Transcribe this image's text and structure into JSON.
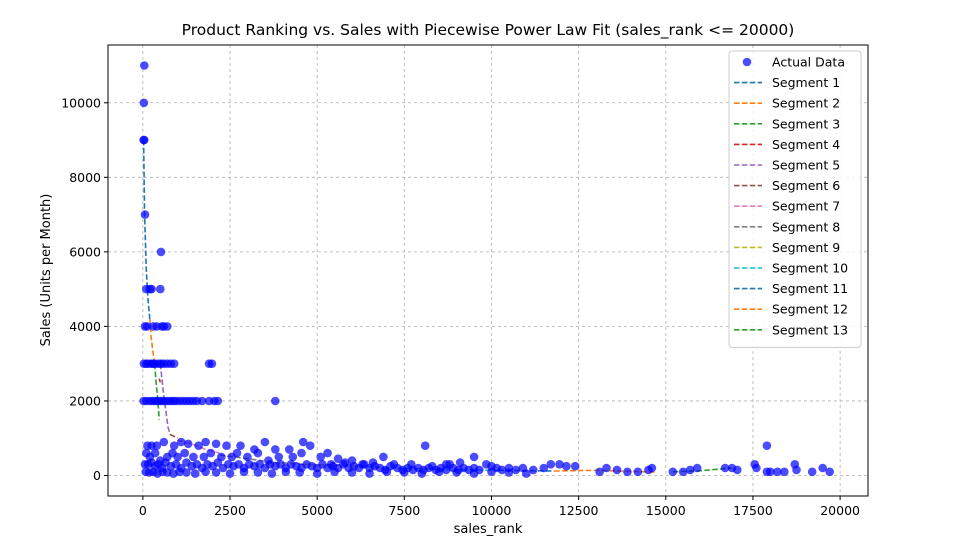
{
  "chart_data": {
    "type": "scatter",
    "title": "Product Ranking vs. Sales with Piecewise Power Law Fit (sales_rank <= 20000)",
    "xlabel": "sales_rank",
    "ylabel": "Sales (Units per Month)",
    "xlim": [
      -1000,
      20800
    ],
    "ylim": [
      -550,
      11550
    ],
    "xticks": [
      0,
      2500,
      5000,
      7500,
      10000,
      12500,
      15000,
      17500,
      20000
    ],
    "yticks": [
      0,
      2000,
      4000,
      6000,
      8000,
      10000
    ],
    "grid": true,
    "legend_position": "top-right",
    "scatter": {
      "name": "Actual Data",
      "color": "#0000ff",
      "points": [
        [
          40,
          11000
        ],
        [
          30,
          10000
        ],
        [
          20,
          9000
        ],
        [
          40,
          9000
        ],
        [
          60,
          7000
        ],
        [
          100,
          5000
        ],
        [
          200,
          5000
        ],
        [
          250,
          5000
        ],
        [
          500,
          5000
        ],
        [
          520,
          6000
        ],
        [
          60,
          4000
        ],
        [
          120,
          4000
        ],
        [
          300,
          4000
        ],
        [
          400,
          4000
        ],
        [
          550,
          4000
        ],
        [
          600,
          4000
        ],
        [
          700,
          4000
        ],
        [
          30,
          3000
        ],
        [
          100,
          3000
        ],
        [
          160,
          3000
        ],
        [
          250,
          3000
        ],
        [
          300,
          3000
        ],
        [
          360,
          3000
        ],
        [
          450,
          3000
        ],
        [
          520,
          3000
        ],
        [
          600,
          3000
        ],
        [
          700,
          3000
        ],
        [
          800,
          3000
        ],
        [
          900,
          3000
        ],
        [
          1900,
          3000
        ],
        [
          1980,
          3000
        ],
        [
          20,
          2000
        ],
        [
          100,
          2000
        ],
        [
          200,
          2000
        ],
        [
          280,
          2000
        ],
        [
          350,
          2000
        ],
        [
          420,
          2000
        ],
        [
          500,
          2000
        ],
        [
          560,
          2000
        ],
        [
          640,
          2000
        ],
        [
          720,
          2000
        ],
        [
          800,
          2000
        ],
        [
          880,
          2000
        ],
        [
          950,
          2000
        ],
        [
          1050,
          2000
        ],
        [
          1150,
          2000
        ],
        [
          1250,
          2000
        ],
        [
          1350,
          2000
        ],
        [
          1450,
          2000
        ],
        [
          1550,
          2000
        ],
        [
          1700,
          2000
        ],
        [
          1900,
          2000
        ],
        [
          2050,
          2000
        ],
        [
          2150,
          2000
        ],
        [
          3800,
          2000
        ],
        [
          130,
          800
        ],
        [
          250,
          800
        ],
        [
          400,
          800
        ],
        [
          600,
          900
        ],
        [
          900,
          800
        ],
        [
          1100,
          900
        ],
        [
          1300,
          850
        ],
        [
          1600,
          800
        ],
        [
          1800,
          900
        ],
        [
          2100,
          850
        ],
        [
          2400,
          800
        ],
        [
          2800,
          800
        ],
        [
          3200,
          700
        ],
        [
          3500,
          900
        ],
        [
          3800,
          700
        ],
        [
          4200,
          700
        ],
        [
          4600,
          900
        ],
        [
          4800,
          800
        ],
        [
          5300,
          600
        ],
        [
          5600,
          450
        ],
        [
          6000,
          400
        ],
        [
          6900,
          500
        ],
        [
          8100,
          800
        ],
        [
          8800,
          300
        ],
        [
          9500,
          500
        ],
        [
          17900,
          800
        ],
        [
          100,
          600
        ],
        [
          200,
          500
        ],
        [
          350,
          600
        ],
        [
          500,
          400
        ],
        [
          700,
          500
        ],
        [
          850,
          600
        ],
        [
          1000,
          500
        ],
        [
          1200,
          600
        ],
        [
          1450,
          500
        ],
        [
          1750,
          500
        ],
        [
          1950,
          600
        ],
        [
          2250,
          500
        ],
        [
          2550,
          500
        ],
        [
          2700,
          600
        ],
        [
          3000,
          500
        ],
        [
          3300,
          600
        ],
        [
          3600,
          400
        ],
        [
          3900,
          500
        ],
        [
          4300,
          500
        ],
        [
          4550,
          600
        ],
        [
          5100,
          500
        ],
        [
          5400,
          300
        ],
        [
          5800,
          350
        ],
        [
          6300,
          300
        ],
        [
          6600,
          350
        ],
        [
          7200,
          300
        ],
        [
          7700,
          300
        ],
        [
          8300,
          250
        ],
        [
          8700,
          300
        ],
        [
          9100,
          350
        ],
        [
          60,
          300
        ],
        [
          150,
          300
        ],
        [
          250,
          350
        ],
        [
          350,
          250
        ],
        [
          450,
          300
        ],
        [
          550,
          200
        ],
        [
          650,
          350
        ],
        [
          800,
          250
        ],
        [
          950,
          300
        ],
        [
          1100,
          200
        ],
        [
          1250,
          350
        ],
        [
          1400,
          250
        ],
        [
          1550,
          300
        ],
        [
          1700,
          200
        ],
        [
          1850,
          300
        ],
        [
          2000,
          250
        ],
        [
          2150,
          350
        ],
        [
          2300,
          200
        ],
        [
          2450,
          300
        ],
        [
          2600,
          250
        ],
        [
          2750,
          300
        ],
        [
          2900,
          200
        ],
        [
          3050,
          300
        ],
        [
          3200,
          250
        ],
        [
          3350,
          300
        ],
        [
          3500,
          200
        ],
        [
          3650,
          300
        ],
        [
          3800,
          250
        ],
        [
          3950,
          300
        ],
        [
          4100,
          200
        ],
        [
          4250,
          300
        ],
        [
          4400,
          250
        ],
        [
          4550,
          200
        ],
        [
          4700,
          300
        ],
        [
          4850,
          250
        ],
        [
          5000,
          200
        ],
        [
          5150,
          300
        ],
        [
          5300,
          200
        ],
        [
          5450,
          250
        ],
        [
          5600,
          200
        ],
        [
          5750,
          300
        ],
        [
          5900,
          200
        ],
        [
          6050,
          250
        ],
        [
          6200,
          200
        ],
        [
          6350,
          300
        ],
        [
          6500,
          200
        ],
        [
          6650,
          250
        ],
        [
          6800,
          200
        ],
        [
          6950,
          150
        ],
        [
          7100,
          250
        ],
        [
          7300,
          200
        ],
        [
          7450,
          150
        ],
        [
          7600,
          200
        ],
        [
          7750,
          150
        ],
        [
          7900,
          200
        ],
        [
          8050,
          150
        ],
        [
          8200,
          200
        ],
        [
          8400,
          150
        ],
        [
          8550,
          200
        ],
        [
          8700,
          150
        ],
        [
          8900,
          200
        ],
        [
          9050,
          150
        ],
        [
          9200,
          200
        ],
        [
          9350,
          150
        ],
        [
          9500,
          200
        ],
        [
          9650,
          150
        ],
        [
          9850,
          300
        ],
        [
          10000,
          250
        ],
        [
          10150,
          200
        ],
        [
          10300,
          150
        ],
        [
          10500,
          200
        ],
        [
          10700,
          150
        ],
        [
          10900,
          200
        ],
        [
          11200,
          150
        ],
        [
          11500,
          200
        ],
        [
          11700,
          300
        ],
        [
          11950,
          300
        ],
        [
          12150,
          250
        ],
        [
          12400,
          250
        ],
        [
          13100,
          100
        ],
        [
          13300,
          200
        ],
        [
          13600,
          150
        ],
        [
          13900,
          100
        ],
        [
          14200,
          100
        ],
        [
          14500,
          150
        ],
        [
          14600,
          200
        ],
        [
          15200,
          100
        ],
        [
          15500,
          100
        ],
        [
          15700,
          150
        ],
        [
          15900,
          200
        ],
        [
          16700,
          200
        ],
        [
          16900,
          200
        ],
        [
          17050,
          150
        ],
        [
          17550,
          300
        ],
        [
          17600,
          200
        ],
        [
          17900,
          100
        ],
        [
          18000,
          100
        ],
        [
          18200,
          100
        ],
        [
          18400,
          100
        ],
        [
          18700,
          300
        ],
        [
          18750,
          150
        ],
        [
          19200,
          100
        ],
        [
          19500,
          200
        ],
        [
          19700,
          100
        ],
        [
          80,
          100
        ],
        [
          180,
          80
        ],
        [
          300,
          100
        ],
        [
          420,
          50
        ],
        [
          560,
          100
        ],
        [
          700,
          80
        ],
        [
          880,
          50
        ],
        [
          1050,
          100
        ],
        [
          1250,
          80
        ],
        [
          1500,
          50
        ],
        [
          1800,
          100
        ],
        [
          2100,
          80
        ],
        [
          2500,
          50
        ],
        [
          2900,
          100
        ],
        [
          3300,
          80
        ],
        [
          3700,
          50
        ],
        [
          4100,
          100
        ],
        [
          4500,
          80
        ],
        [
          5000,
          50
        ],
        [
          5500,
          100
        ],
        [
          6000,
          80
        ],
        [
          6500,
          50
        ],
        [
          7000,
          100
        ],
        [
          7500,
          80
        ],
        [
          8000,
          50
        ],
        [
          8500,
          100
        ],
        [
          9000,
          80
        ],
        [
          9500,
          50
        ],
        [
          10000,
          100
        ],
        [
          10500,
          80
        ],
        [
          11000,
          50
        ]
      ]
    },
    "series": [
      {
        "name": "Segment 1",
        "color": "#1f77b4",
        "x": [
          20,
          50,
          100,
          150,
          200
        ],
        "y": [
          9000,
          7000,
          5500,
          4700,
          4200
        ]
      },
      {
        "name": "Segment 2",
        "color": "#ff7f0e",
        "x": [
          200,
          240,
          290,
          340
        ],
        "y": [
          4200,
          3700,
          3300,
          3000
        ]
      },
      {
        "name": "Segment 3",
        "color": "#2ca02c",
        "x": [
          340,
          380,
          430,
          470
        ],
        "y": [
          3000,
          2500,
          2000,
          1500
        ]
      },
      {
        "name": "Segment 4",
        "color": "#d62728",
        "x": [
          470,
          500
        ],
        "y": [
          2600,
          2500
        ]
      },
      {
        "name": "Segment 5",
        "color": "#9467bd",
        "x": [
          500,
          580,
          650,
          720,
          780
        ],
        "y": [
          3000,
          2300,
          1800,
          1300,
          1100
        ]
      },
      {
        "name": "Segment 6",
        "color": "#8c564b",
        "x": [
          780,
          900,
          1000
        ],
        "y": [
          1100,
          1050,
          1000
        ]
      },
      {
        "name": "Segment 7",
        "color": "#e377c2",
        "x": [
          1000,
          1400,
          1800,
          2200
        ],
        "y": [
          950,
          850,
          700,
          600
        ]
      },
      {
        "name": "Segment 8",
        "color": "#7f7f7f",
        "x": [
          2200,
          3000,
          3800,
          4600
        ],
        "y": [
          550,
          450,
          350,
          300
        ]
      },
      {
        "name": "Segment 9",
        "color": "#bcbd22",
        "x": [
          4600,
          5400,
          6200
        ],
        "y": [
          300,
          280,
          250
        ]
      },
      {
        "name": "Segment 10",
        "color": "#17becf",
        "x": [
          6200,
          7200,
          8200,
          9200,
          10200
        ],
        "y": [
          250,
          200,
          170,
          150,
          140
        ]
      },
      {
        "name": "Segment 11",
        "color": "#1f77b4",
        "x": [
          10200,
          11000,
          11800
        ],
        "y": [
          140,
          130,
          120
        ]
      },
      {
        "name": "Segment 12",
        "color": "#ff7f0e",
        "x": [
          11800,
          13000,
          14000,
          14700
        ],
        "y": [
          120,
          140,
          110,
          90
        ]
      },
      {
        "name": "Segment 13",
        "color": "#2ca02c",
        "x": [
          15200,
          16000,
          16900
        ],
        "y": [
          100,
          130,
          200
        ]
      }
    ]
  }
}
